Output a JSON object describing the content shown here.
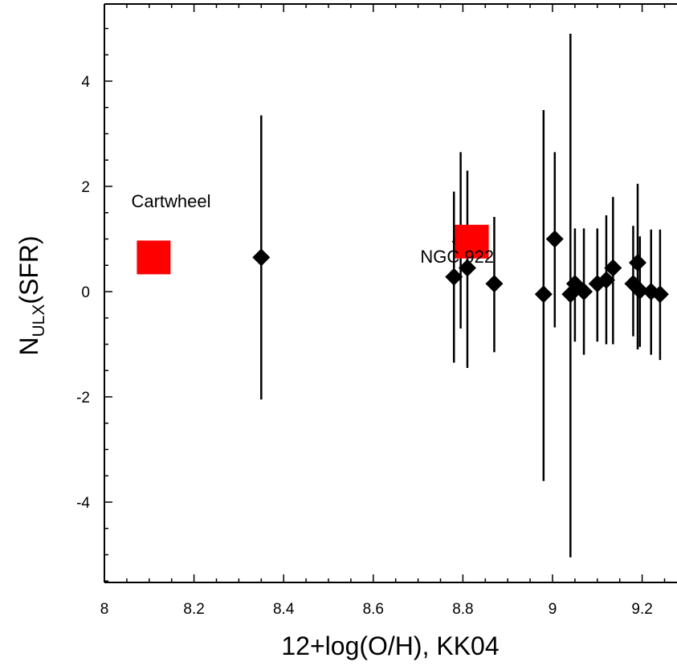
{
  "chart_data": {
    "type": "scatter",
    "title": "",
    "xlabel": "12+log(O/H), KK04",
    "ylabel": {
      "main": "N",
      "sub": "ULX",
      "suffix": "(SFR)"
    },
    "xlim": [
      8.0,
      9.25
    ],
    "ylim": [
      -5.5,
      5.5
    ],
    "x_ticks": [
      8,
      8.2,
      8.4,
      8.6,
      8.8,
      9,
      9.2
    ],
    "x_tick_labels": [
      "8",
      "8.2",
      "8.4",
      "8.6",
      "8.8",
      "9",
      "9.2"
    ],
    "y_ticks": [
      -4,
      -2,
      0,
      2,
      4
    ],
    "y_tick_labels": [
      "-4",
      "-2",
      "0",
      "2",
      "4"
    ],
    "grid": false,
    "legend": "none",
    "series": [
      {
        "marker": "diamond",
        "color": "#000000",
        "points": [
          {
            "x": 8.35,
            "y": 0.65,
            "ylo": -2.05,
            "yhi": 3.35
          },
          {
            "x": 8.78,
            "y": 0.28,
            "ylo": -1.35,
            "yhi": 1.9
          },
          {
            "x": 8.795,
            "y": 0.95,
            "ylo": -0.7,
            "yhi": 2.65
          },
          {
            "x": 8.81,
            "y": 0.45,
            "ylo": -1.45,
            "yhi": 2.3
          },
          {
            "x": 8.87,
            "y": 0.15,
            "ylo": -1.15,
            "yhi": 1.42
          },
          {
            "x": 8.98,
            "y": -0.05,
            "ylo": -3.6,
            "yhi": 3.45
          },
          {
            "x": 9.005,
            "y": 1.0,
            "ylo": -0.68,
            "yhi": 2.65
          },
          {
            "x": 9.04,
            "y": -0.05,
            "ylo": -5.05,
            "yhi": 4.9
          },
          {
            "x": 9.05,
            "y": 0.15,
            "ylo": -0.95,
            "yhi": 1.2
          },
          {
            "x": 9.07,
            "y": 0.0,
            "ylo": -1.2,
            "yhi": 1.2
          },
          {
            "x": 9.1,
            "y": 0.15,
            "ylo": -0.95,
            "yhi": 1.2
          },
          {
            "x": 9.12,
            "y": 0.22,
            "ylo": -1.0,
            "yhi": 1.45
          },
          {
            "x": 9.135,
            "y": 0.45,
            "ylo": -1.0,
            "yhi": 1.8
          },
          {
            "x": 9.18,
            "y": 0.15,
            "ylo": -0.85,
            "yhi": 1.25
          },
          {
            "x": 9.19,
            "y": 0.55,
            "ylo": -1.1,
            "yhi": 2.05
          },
          {
            "x": 9.195,
            "y": 0.02,
            "ylo": -1.05,
            "yhi": 1.05
          },
          {
            "x": 9.22,
            "y": 0.0,
            "ylo": -1.2,
            "yhi": 1.18
          },
          {
            "x": 9.24,
            "y": -0.05,
            "ylo": -1.3,
            "yhi": 1.18
          }
        ]
      },
      {
        "marker": "square",
        "color": "#ff0000",
        "points": [
          {
            "x": 8.11,
            "y": 0.65
          },
          {
            "x": 8.82,
            "y": 0.95
          }
        ]
      }
    ],
    "annotations": [
      {
        "text": "Cartwheel",
        "x": 8.06,
        "y": 1.6
      },
      {
        "text": "NGC 922",
        "x": 8.705,
        "y": 0.55
      }
    ]
  }
}
